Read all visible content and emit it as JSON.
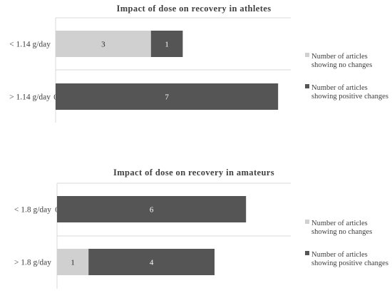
{
  "colors": {
    "no_change": "#d0d0d0",
    "positive": "#555555",
    "axis": "#d9d9d9"
  },
  "chart_data": [
    {
      "type": "bar",
      "orientation": "horizontal",
      "stacked": true,
      "title": "Impact of dose on recovery in athletes",
      "categories": [
        "< 1.14 g/day",
        "> 1.14 g/day"
      ],
      "series": [
        {
          "name": "Number of articles showing no changes",
          "values": [
            3,
            0
          ]
        },
        {
          "name": "Number of articles showing positive changes",
          "values": [
            1,
            7
          ]
        }
      ],
      "data_labels": [
        [
          "3",
          "0"
        ],
        [
          "1",
          "7"
        ]
      ],
      "xlim": [
        0,
        7
      ],
      "legend_position": "right"
    },
    {
      "type": "bar",
      "orientation": "horizontal",
      "stacked": true,
      "title": "Impact of dose on recovery in amateurs",
      "categories": [
        "< 1.8 g/day",
        "> 1.8 g/day"
      ],
      "series": [
        {
          "name": "Number of articles showing no changes",
          "values": [
            0,
            1
          ]
        },
        {
          "name": "Number of articles showing positive changes",
          "values": [
            6,
            4
          ]
        }
      ],
      "data_labels": [
        [
          "0",
          "1"
        ],
        [
          "6",
          "4"
        ]
      ],
      "xlim": [
        0,
        6
      ],
      "legend_position": "right"
    }
  ]
}
